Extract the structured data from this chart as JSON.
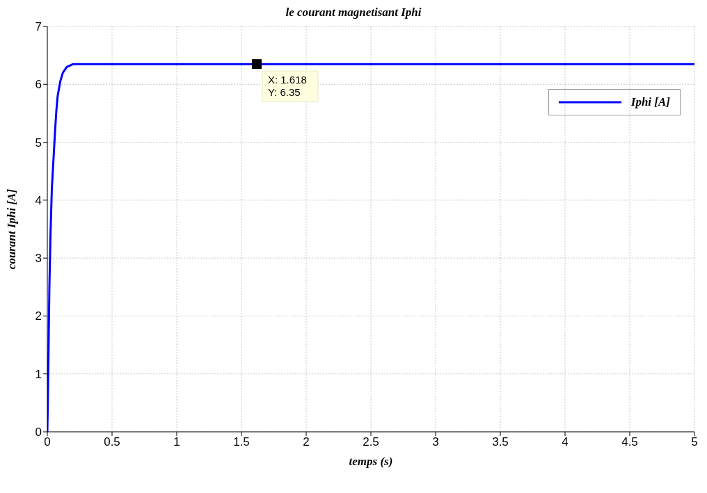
{
  "chart_data": {
    "type": "line",
    "title": "le courant magnetisant Iphi",
    "xlabel": "temps (s)",
    "ylabel": "courant Iphi [A]",
    "xlim": [
      0,
      5
    ],
    "xticks": [
      0,
      0.5,
      1,
      1.5,
      2,
      2.5,
      3,
      3.5,
      4,
      4.5,
      5
    ],
    "ylim": [
      0,
      7
    ],
    "yticks": [
      0,
      1,
      2,
      3,
      4,
      5,
      6,
      7
    ],
    "grid": true,
    "legend": "top right",
    "series": [
      {
        "name": "Iphi [A]",
        "color": "#0000ff",
        "x": [
          0,
          0.004,
          0.01,
          0.016,
          0.025,
          0.035,
          0.05,
          0.06,
          0.07,
          0.08,
          0.1,
          0.12,
          0.15,
          0.2,
          1.618,
          5
        ],
        "values": [
          0,
          0.5,
          1.5,
          2.5,
          3.45,
          4.2,
          4.8,
          5.2,
          5.55,
          5.8,
          6.05,
          6.2,
          6.3,
          6.35,
          6.35,
          6.35
        ]
      }
    ],
    "annotations": [
      {
        "text": "X: 1.618\nY: 6.35",
        "x": 1.618,
        "y": 6.35
      }
    ]
  }
}
